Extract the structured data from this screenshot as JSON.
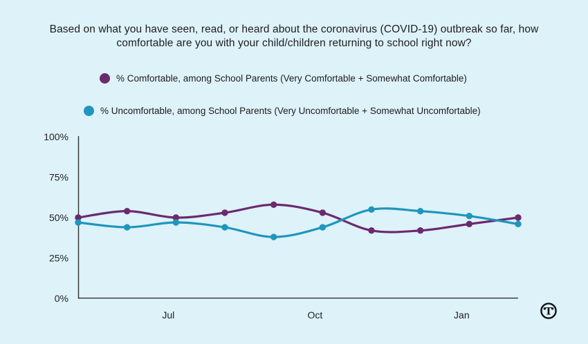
{
  "page": {
    "background": "#def2f9"
  },
  "title": {
    "line1": "Based on what you have seen, read, or heard about the coronavirus (COVID-19) outbreak so far, how",
    "line2": "comfortable are you with your child/children returning to school right now?"
  },
  "legend": [
    {
      "label": "% Comfortable, among School Parents (Very Comfortable + Somewhat Comfortable)",
      "color": "#6b2a6f"
    },
    {
      "label": "% Uncomfortable, among School Parents (Very Uncomfortable + Somewhat Uncomfortable)",
      "color": "#1e96bd"
    }
  ],
  "chart_data": {
    "type": "line",
    "title": "Based on what you have seen, read, or heard about the coronavirus (COVID-19) outbreak so far, how comfortable are you with your child/children returning to school right now?",
    "x_count": 10,
    "x_ticks": [
      {
        "index": 2,
        "label": "Jul"
      },
      {
        "index": 5,
        "label": "Oct"
      },
      {
        "index": 8,
        "label": "Jan"
      }
    ],
    "y_ticks": [
      {
        "value": 0,
        "label": "0%"
      },
      {
        "value": 25,
        "label": "25%"
      },
      {
        "value": 50,
        "label": "50%"
      },
      {
        "value": 75,
        "label": "75%"
      },
      {
        "value": 100,
        "label": "100%"
      }
    ],
    "ylim": [
      0,
      100
    ],
    "grid": false,
    "legend_position": "top-left",
    "axis_color": "#2f2f2f",
    "series": [
      {
        "name": "% Comfortable, among School Parents (Very Comfortable + Somewhat Comfortable)",
        "color": "#6b2a6f",
        "values": [
          50,
          54,
          50,
          53,
          58,
          53,
          42,
          42,
          46,
          50
        ]
      },
      {
        "name": "% Uncomfortable, among School Parents (Very Uncomfortable + Somewhat Uncomfortable)",
        "color": "#1e96bd",
        "values": [
          47,
          44,
          47,
          44,
          38,
          44,
          55,
          54,
          51,
          46
        ]
      }
    ]
  },
  "logo": {
    "letter": "T"
  }
}
